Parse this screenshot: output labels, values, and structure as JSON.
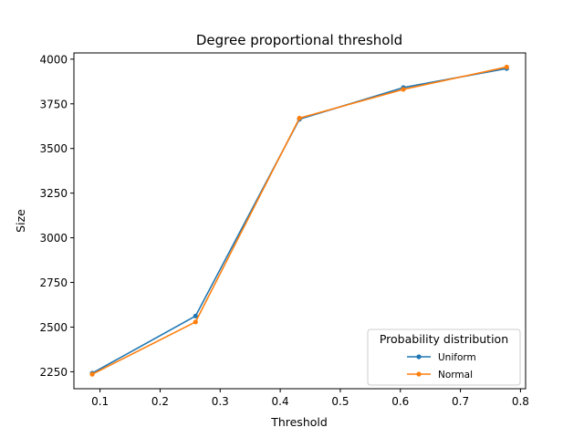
{
  "chart_data": {
    "type": "line",
    "title": "Degree proportional threshold",
    "xlabel": "Threshold",
    "ylabel": "Size",
    "xlim": [
      0.0565,
      0.8085
    ],
    "ylim": [
      2155,
      4035
    ],
    "xticks": [
      0.1,
      0.2,
      0.3,
      0.4,
      0.5,
      0.6,
      0.7,
      0.8
    ],
    "xtick_labels": [
      "0.1",
      "0.2",
      "0.3",
      "0.4",
      "0.5",
      "0.6",
      "0.7",
      "0.8"
    ],
    "yticks": [
      2250,
      2500,
      2750,
      3000,
      3250,
      3500,
      3750,
      4000
    ],
    "ytick_labels": [
      "2250",
      "2500",
      "2750",
      "3000",
      "3250",
      "3500",
      "3750",
      "4000"
    ],
    "grid": false,
    "legend": {
      "title": "Probability distribution",
      "placement": "bottom-right"
    },
    "series": [
      {
        "name": "Uniform",
        "color": "#1f77b4",
        "x": [
          0.087,
          0.259,
          0.432,
          0.605,
          0.777
        ],
        "y": [
          2242,
          2562,
          3664,
          3841,
          3948
        ]
      },
      {
        "name": "Normal",
        "color": "#ff7f0e",
        "x": [
          0.087,
          0.259,
          0.432,
          0.605,
          0.777
        ],
        "y": [
          2236,
          2529,
          3670,
          3831,
          3956
        ]
      }
    ]
  }
}
